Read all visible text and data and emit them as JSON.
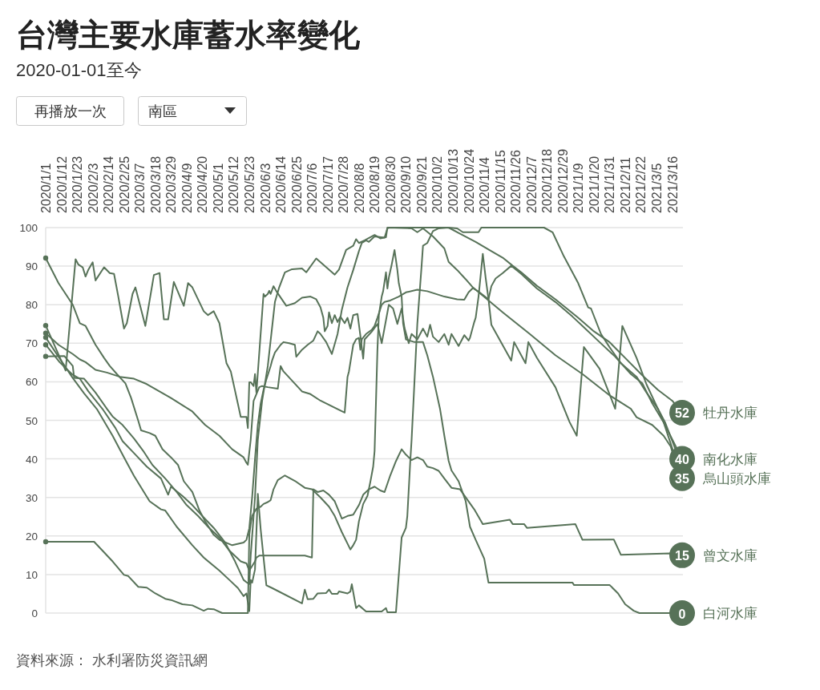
{
  "chart_data": {
    "type": "line",
    "title": "台灣主要水庫蓄水率變化",
    "subtitle": "2020-01-01至今",
    "annotations": [
      "再播放一次",
      "南區",
      "資料來源： 水利署防災資訊網"
    ],
    "xlim": [
      "2020-01-01",
      "2021-03-23"
    ],
    "xticks": [
      {
        "value": "2020-01-01",
        "label": "2020/1/1"
      },
      {
        "value": "2020-01-12",
        "label": "2020/1/12"
      },
      {
        "value": "2020-01-23",
        "label": "2020/1/23"
      },
      {
        "value": "2020-02-03",
        "label": "2020/2/3"
      },
      {
        "value": "2020-02-14",
        "label": "2020/2/14"
      },
      {
        "value": "2020-02-25",
        "label": "2020/2/25"
      },
      {
        "value": "2020-03-07",
        "label": "2020/3/7"
      },
      {
        "value": "2020-03-18",
        "label": "2020/3/18"
      },
      {
        "value": "2020-03-29",
        "label": "2020/3/29"
      },
      {
        "value": "2020-04-09",
        "label": "2020/4/9"
      },
      {
        "value": "2020-04-20",
        "label": "2020/4/20"
      },
      {
        "value": "2020-05-01",
        "label": "2020/5/1"
      },
      {
        "value": "2020-05-12",
        "label": "2020/5/12"
      },
      {
        "value": "2020-05-23",
        "label": "2020/5/23"
      },
      {
        "value": "2020-06-03",
        "label": "2020/6/3"
      },
      {
        "value": "2020-06-14",
        "label": "2020/6/14"
      },
      {
        "value": "2020-06-25",
        "label": "2020/6/25"
      },
      {
        "value": "2020-07-06",
        "label": "2020/7/6"
      },
      {
        "value": "2020-07-17",
        "label": "2020/7/17"
      },
      {
        "value": "2020-07-28",
        "label": "2020/7/28"
      },
      {
        "value": "2020-08-08",
        "label": "2020/8/8"
      },
      {
        "value": "2020-08-19",
        "label": "2020/8/19"
      },
      {
        "value": "2020-08-30",
        "label": "2020/8/30"
      },
      {
        "value": "2020-09-10",
        "label": "2020/9/10"
      },
      {
        "value": "2020-09-21",
        "label": "2020/9/21"
      },
      {
        "value": "2020-10-02",
        "label": "2020/10/2"
      },
      {
        "value": "2020-10-13",
        "label": "2020/10/13"
      },
      {
        "value": "2020-10-24",
        "label": "2020/10/24"
      },
      {
        "value": "2020-11-04",
        "label": "2020/11/4"
      },
      {
        "value": "2020-11-15",
        "label": "2020/11/15"
      },
      {
        "value": "2020-11-26",
        "label": "2020/11/26"
      },
      {
        "value": "2020-12-07",
        "label": "2020/12/7"
      },
      {
        "value": "2020-12-18",
        "label": "2020/12/18"
      },
      {
        "value": "2020-12-29",
        "label": "2020/12/29"
      },
      {
        "value": "2021-01-09",
        "label": "2021/1/9"
      },
      {
        "value": "2021-01-20",
        "label": "2021/1/20"
      },
      {
        "value": "2021-01-31",
        "label": "2021/1/31"
      },
      {
        "value": "2021-02-11",
        "label": "2021/2/11"
      },
      {
        "value": "2021-02-22",
        "label": "2021/2/22"
      },
      {
        "value": "2021-03-05",
        "label": "2021/3/5"
      },
      {
        "value": "2021-03-16",
        "label": "2021/3/16"
      }
    ],
    "ylim": [
      0,
      100
    ],
    "yticks": [
      0,
      10,
      20,
      30,
      40,
      50,
      60,
      70,
      80,
      90,
      100
    ],
    "grid": "y",
    "series": [
      {
        "name": "牡丹水庫",
        "color": "#577258",
        "x": [
          "2020-01-01",
          "2020-01-10",
          "2020-01-20",
          "2020-01-25",
          "2020-01-29",
          "2020-02-05",
          "2020-02-11",
          "2020-02-15",
          "2020-02-20",
          "2020-02-26",
          "2020-03-01",
          "2020-03-06",
          "2020-03-08",
          "2020-03-14",
          "2020-03-18",
          "2020-03-23",
          "2020-03-29",
          "2020-04-03",
          "2020-04-07",
          "2020-04-13",
          "2020-04-18",
          "2020-04-22",
          "2020-04-28",
          "2020-05-02",
          "2020-05-11",
          "2020-05-19",
          "2020-05-21",
          "2020-05-23",
          "2020-05-25",
          "2020-05-27",
          "2020-05-29",
          "2020-05-31",
          "2020-06-02",
          "2020-06-04",
          "2020-06-07",
          "2020-06-08",
          "2020-06-10",
          "2020-06-14",
          "2020-06-16",
          "2020-06-20",
          "2020-06-24",
          "2020-06-25",
          "2020-06-29",
          "2020-07-03",
          "2020-07-07",
          "2020-07-10",
          "2020-07-12",
          "2020-07-16",
          "2020-07-20",
          "2020-07-24",
          "2020-07-27",
          "2020-07-31",
          "2020-08-04",
          "2020-08-08",
          "2020-08-10",
          "2020-08-13",
          "2020-08-15",
          "2020-08-19",
          "2020-08-26",
          "2020-08-28",
          "2020-08-29",
          "2020-10-10",
          "2020-10-18",
          "2020-10-29",
          "2020-11-09",
          "2020-11-17",
          "2020-11-24",
          "2020-11-30",
          "2020-12-11",
          "2020-12-24",
          "2021-01-01",
          "2021-01-09",
          "2021-01-20",
          "2021-01-31",
          "2021-02-11",
          "2021-02-23",
          "2021-03-06",
          "2021-03-16",
          "2021-03-23"
        ],
        "values": [
          92.1,
          85.6,
          80,
          75.2,
          74.5,
          69.6,
          66.2,
          64.1,
          62,
          59.6,
          55.8,
          49.9,
          47.4,
          46.7,
          46,
          42.5,
          40.4,
          38.4,
          34.2,
          31.4,
          26.6,
          23.8,
          20.3,
          19,
          17.6,
          18.3,
          19,
          22,
          30,
          40,
          48.9,
          54.4,
          57.9,
          60.6,
          64.1,
          65.5,
          67.6,
          69.6,
          70.3,
          70,
          69.6,
          66.5,
          68.3,
          69.6,
          70.7,
          73.1,
          72.4,
          70.3,
          67.2,
          72.4,
          78.7,
          84.5,
          89,
          93.9,
          96,
          96.7,
          96.3,
          97.7,
          97.4,
          99.8,
          100,
          100,
          98.4,
          96.3,
          93.9,
          92.2,
          90.1,
          88.4,
          84.9,
          81.4,
          79,
          76.6,
          73.1,
          70.3,
          66.2,
          61.7,
          57.9,
          55.1,
          52
        ],
        "value_labels": [
          null,
          null,
          null,
          null,
          null,
          null,
          null,
          null,
          null,
          null,
          null,
          null,
          null,
          null,
          null,
          null,
          null,
          null,
          null,
          null,
          null,
          null,
          null,
          null,
          null,
          null,
          null,
          null,
          null,
          null,
          null,
          null,
          null,
          null,
          null,
          null,
          null,
          null,
          null,
          null,
          null,
          null,
          null,
          null,
          null,
          null,
          null,
          null,
          null,
          null,
          null,
          null,
          null,
          null,
          null,
          null,
          null,
          null,
          null,
          null,
          null,
          null,
          null,
          null,
          null,
          null,
          null,
          null,
          null,
          null,
          null,
          null,
          null,
          null,
          null,
          null,
          null,
          null,
          "52"
        ]
      },
      {
        "name": "南化水庫",
        "color": "#577258",
        "x": [
          "2020-01-01",
          "2020-01-10",
          "2020-01-20",
          "2020-01-25",
          "2020-01-29",
          "2020-02-05",
          "2020-02-13",
          "2020-02-22",
          "2020-03-03",
          "2020-03-12",
          "2020-03-29",
          "2020-04-13",
          "2020-04-22",
          "2020-05-02",
          "2020-05-11",
          "2020-05-19",
          "2020-05-21",
          "2020-05-22",
          "2020-05-24",
          "2020-05-26",
          "2020-05-30",
          "2020-06-01",
          "2020-06-05",
          "2020-06-12",
          "2020-06-14",
          "2020-06-16",
          "2020-06-29",
          "2020-07-05",
          "2020-07-12",
          "2020-07-29",
          "2020-07-31",
          "2020-08-01",
          "2020-08-04",
          "2020-08-06",
          "2020-08-08",
          "2020-08-09",
          "2020-08-10",
          "2020-08-13",
          "2020-08-17",
          "2020-08-19",
          "2020-08-21",
          "2020-08-24",
          "2020-08-26",
          "2020-08-30",
          "2020-09-05",
          "2020-09-10",
          "2020-09-18",
          "2020-09-25",
          "2020-10-07",
          "2020-10-16",
          "2020-10-21",
          "2020-10-24",
          "2020-10-27",
          "2020-10-31",
          "2020-11-07",
          "2020-11-09",
          "2020-11-12",
          "2020-11-17",
          "2020-11-23",
          "2020-11-30",
          "2020-12-11",
          "2020-12-24",
          "2021-01-05",
          "2021-01-12",
          "2021-01-24",
          "2021-02-04",
          "2021-02-15",
          "2021-02-23",
          "2021-03-02",
          "2021-03-10",
          "2021-03-23"
        ],
        "values": [
          72.6,
          69.6,
          67.2,
          65.8,
          65.1,
          63.1,
          62.4,
          61.3,
          60.8,
          59.4,
          55.8,
          52.3,
          48.8,
          46,
          42.5,
          40.4,
          39,
          38.5,
          45,
          55,
          58.6,
          58.9,
          58.6,
          58.2,
          64.1,
          62.7,
          57.5,
          56.8,
          55.1,
          52,
          61.3,
          62.7,
          69.6,
          71,
          71.4,
          68.3,
          71,
          72.4,
          73.5,
          74.5,
          76.6,
          80,
          80.7,
          81.1,
          82.1,
          83.2,
          83.9,
          83.5,
          82.1,
          81.4,
          81.3,
          83.2,
          84.3,
          83.4,
          81.4,
          84.8,
          86.8,
          88.2,
          90.1,
          88,
          84.2,
          80.7,
          76.9,
          74.5,
          70.3,
          66.5,
          62,
          59.6,
          54.4,
          49.5,
          40
        ],
        "value_labels": [
          null,
          null,
          null,
          null,
          null,
          null,
          null,
          null,
          null,
          null,
          null,
          null,
          null,
          null,
          null,
          null,
          null,
          null,
          null,
          null,
          null,
          null,
          null,
          null,
          null,
          null,
          null,
          null,
          null,
          null,
          null,
          null,
          null,
          null,
          null,
          null,
          null,
          null,
          null,
          null,
          null,
          null,
          null,
          null,
          null,
          null,
          null,
          null,
          null,
          null,
          null,
          null,
          null,
          null,
          null,
          null,
          null,
          null,
          null,
          null,
          null,
          null,
          null,
          null,
          null,
          null,
          null,
          null,
          null,
          null,
          "40"
        ]
      },
      {
        "color": "#577258",
        "x": [
          "2020-01-01",
          "2020-01-10",
          "2020-01-20",
          "2020-01-28",
          "2020-02-06",
          "2020-02-17",
          "2020-02-26",
          "2020-03-03",
          "2020-03-10",
          "2020-03-14",
          "2020-03-22",
          "2020-03-25",
          "2020-04-02",
          "2020-04-13",
          "2020-04-21",
          "2020-05-02",
          "2020-05-09",
          "2020-05-15",
          "2020-05-19",
          "2020-05-21",
          "2020-05-23",
          "2020-05-24",
          "2020-05-25",
          "2020-05-27",
          "2020-05-29",
          "2020-05-31",
          "2020-06-04",
          "2020-06-08",
          "2020-06-29",
          "2020-07-01",
          "2020-07-03",
          "2020-07-07",
          "2020-07-10",
          "2020-07-16",
          "2020-07-18",
          "2020-07-20",
          "2020-07-24",
          "2020-07-25",
          "2020-07-31",
          "2020-08-02",
          "2020-08-03",
          "2020-08-06",
          "2020-08-08",
          "2020-08-13",
          "2020-08-24",
          "2020-08-27",
          "2020-08-28",
          "2020-09-03",
          "2020-09-07",
          "2020-09-10",
          "2020-09-11",
          "2020-09-13",
          "2020-09-14",
          "2020-09-16",
          "2020-09-18",
          "2020-09-21",
          "2020-09-22",
          "2020-09-25",
          "2020-09-29",
          "2020-10-03",
          "2020-10-10",
          "2020-10-16",
          "2020-10-20",
          "2020-10-26",
          "2020-10-31",
          "2020-11-02",
          "2020-12-16",
          "2020-12-22",
          "2020-12-30",
          "2021-01-09",
          "2021-01-16",
          "2021-01-18",
          "2021-01-25",
          "2021-01-31",
          "2021-02-08",
          "2021-02-19",
          "2021-02-26",
          "2021-03-06",
          "2021-03-11",
          "2021-03-23"
        ],
        "values": [
          71.5,
          66.5,
          61,
          57,
          52.9,
          46,
          39.7,
          35.6,
          31.4,
          29,
          26.9,
          26.6,
          22.4,
          17.6,
          14.4,
          11,
          8.6,
          6.5,
          4.4,
          5.1,
          0.5,
          8.6,
          7.9,
          11.3,
          30.9,
          21.7,
          7.2,
          6.5,
          2.5,
          6.1,
          3.6,
          3.7,
          5.1,
          5.2,
          6.1,
          5,
          5,
          5.6,
          5.1,
          5.6,
          7.5,
          1.3,
          2,
          0.4,
          0.4,
          1.3,
          0.2,
          0.2,
          19.6,
          22.1,
          25.2,
          39,
          45,
          60,
          75,
          90,
          95.3,
          96,
          99.1,
          99.8,
          100,
          99.8,
          98.8,
          98.8,
          98.8,
          100,
          100,
          98.8,
          92.5,
          85.6,
          79.3,
          79,
          72.4,
          69,
          64.8,
          61.3,
          57.2,
          53,
          49.5,
          38
        ]
      },
      {
        "name": "烏山頭水庫",
        "color": "#577258",
        "x": [
          "2020-01-01",
          "2020-01-15",
          "2020-01-22",
          "2020-01-24",
          "2020-01-27",
          "2020-01-29",
          "2020-01-31",
          "2020-02-03",
          "2020-02-05",
          "2020-02-11",
          "2020-02-15",
          "2020-02-18",
          "2020-02-21",
          "2020-02-25",
          "2020-02-27",
          "2020-03-02",
          "2020-03-04",
          "2020-03-11",
          "2020-03-17",
          "2020-03-21",
          "2020-03-24",
          "2020-03-27",
          "2020-03-31",
          "2020-04-07",
          "2020-04-10",
          "2020-04-13",
          "2020-04-21",
          "2020-04-24",
          "2020-04-28",
          "2020-05-02",
          "2020-05-07",
          "2020-05-10",
          "2020-05-17",
          "2020-05-21",
          "2020-05-22",
          "2020-05-23",
          "2020-05-24",
          "2020-05-26",
          "2020-05-27",
          "2020-05-28",
          "2020-06-02",
          "2020-06-03",
          "2020-06-05",
          "2020-06-06",
          "2020-06-07",
          "2020-06-09",
          "2020-06-11",
          "2020-06-18",
          "2020-06-24",
          "2020-06-29",
          "2020-07-05",
          "2020-07-09",
          "2020-07-12",
          "2020-07-14",
          "2020-07-15",
          "2020-07-17",
          "2020-07-18",
          "2020-07-20",
          "2020-07-22",
          "2020-07-24",
          "2020-07-26",
          "2020-07-29",
          "2020-07-31",
          "2020-08-02",
          "2020-08-04",
          "2020-08-07",
          "2020-08-09",
          "2020-08-11",
          "2020-08-12",
          "2020-08-17",
          "2020-08-21",
          "2020-08-24",
          "2020-08-26",
          "2020-08-29",
          "2020-09-01",
          "2020-09-04",
          "2020-09-07",
          "2020-09-09",
          "2020-09-12",
          "2020-09-14",
          "2020-09-18",
          "2020-09-22",
          "2020-09-25",
          "2020-09-27",
          "2020-09-29",
          "2020-10-03",
          "2020-10-07",
          "2020-10-10",
          "2020-10-12",
          "2020-10-17",
          "2020-10-21",
          "2020-10-24",
          "2020-10-25",
          "2020-10-28",
          "2020-10-29",
          "2020-10-31",
          "2020-11-03",
          "2020-11-05",
          "2020-11-07",
          "2020-11-09",
          "2020-11-23",
          "2020-11-25",
          "2020-12-03",
          "2020-12-05",
          "2020-12-11",
          "2020-12-24",
          "2021-01-03",
          "2021-01-08",
          "2021-01-13",
          "2021-01-24",
          "2021-02-04",
          "2021-02-09",
          "2021-02-19",
          "2021-02-26",
          "2021-03-06",
          "2021-03-10",
          "2021-03-23"
        ],
        "values": [
          74.6,
          62.9,
          91.8,
          90.4,
          89.7,
          87.3,
          89.1,
          91,
          86.3,
          89.7,
          88.2,
          88,
          82.1,
          73.8,
          75.2,
          82.8,
          84.5,
          74.5,
          87.7,
          88.2,
          76.2,
          76.2,
          85.9,
          79.7,
          85.6,
          84.5,
          78.3,
          77.3,
          78.3,
          75.2,
          64.8,
          62.7,
          50.9,
          50.9,
          48,
          59.9,
          59.9,
          58.9,
          62,
          57.2,
          82.8,
          82.1,
          82.8,
          83.6,
          82.8,
          84.8,
          83.5,
          79.7,
          80.4,
          81.8,
          82.1,
          81.4,
          79.3,
          76.6,
          73.1,
          74.5,
          78,
          75.2,
          77.3,
          75.5,
          76.9,
          75.2,
          76.6,
          73.8,
          77.3,
          77.6,
          72,
          66,
          71,
          73,
          75,
          70,
          74,
          80,
          79,
          75,
          79,
          74,
          70,
          72.4,
          71,
          73.8,
          71.7,
          74.8,
          71.7,
          70.3,
          72.4,
          69.6,
          72.4,
          69.3,
          72.1,
          70.7,
          71.4,
          75.5,
          76.6,
          82.1,
          93.2,
          87,
          81.4,
          74.8,
          65.5,
          70.3,
          64.8,
          70.3,
          66.2,
          58.6,
          49.5,
          46,
          69,
          63.4,
          53,
          74.5,
          66.2,
          59.3,
          53,
          49.5,
          35
        ],
        "value_labels": [
          null,
          null,
          null,
          null,
          null,
          null,
          null,
          null,
          null,
          null,
          null,
          null,
          null,
          null,
          null,
          null,
          null,
          null,
          null,
          null,
          null,
          null,
          null,
          null,
          null,
          null,
          null,
          null,
          null,
          null,
          null,
          null,
          null,
          null,
          null,
          null,
          null,
          null,
          null,
          null,
          null,
          null,
          null,
          null,
          null,
          null,
          null,
          null,
          null,
          null,
          null,
          null,
          null,
          null,
          null,
          null,
          null,
          null,
          null,
          null,
          null,
          null,
          null,
          null,
          null,
          null,
          null,
          null,
          null,
          null,
          null,
          null,
          null,
          null,
          null,
          null,
          null,
          null,
          null,
          null,
          null,
          null,
          null,
          null,
          null,
          null,
          null,
          null,
          null,
          null,
          null,
          null,
          null,
          null,
          null,
          null,
          null,
          null,
          null,
          null,
          null,
          null,
          null,
          null,
          null,
          null,
          null,
          null,
          null,
          null,
          null,
          null,
          null,
          null,
          null,
          null,
          "35"
        ]
      },
      {
        "color": "#577258",
        "x": [
          "2020-01-01",
          "2020-01-11",
          "2020-01-20",
          "2020-01-25",
          "2020-01-31",
          "2020-02-10",
          "2020-02-19",
          "2020-02-24",
          "2020-03-03",
          "2020-03-12",
          "2020-03-22",
          "2020-03-27",
          "2020-03-29",
          "2020-04-06",
          "2020-04-13",
          "2020-04-21",
          "2020-04-28",
          "2020-05-06",
          "2020-05-13",
          "2020-05-19",
          "2020-05-21",
          "2020-05-23",
          "2020-05-24",
          "2020-05-27",
          "2020-05-29",
          "2020-06-01",
          "2020-06-05",
          "2020-06-10",
          "2020-06-13",
          "2020-06-17",
          "2020-06-22",
          "2020-06-29",
          "2020-07-02",
          "2020-07-09",
          "2020-07-18",
          "2020-07-22",
          "2020-07-25",
          "2020-07-30",
          "2020-08-04",
          "2020-08-06",
          "2020-08-08",
          "2020-08-12",
          "2020-08-19",
          "2020-08-23",
          "2020-08-27",
          "2020-08-28",
          "2020-09-14",
          "2020-09-18",
          "2020-09-22",
          "2020-09-29",
          "2020-10-07",
          "2020-10-10",
          "2020-10-16",
          "2020-10-22",
          "2020-10-27",
          "2020-11-17",
          "2020-12-06",
          "2020-12-24",
          "2021-01-12",
          "2021-01-31",
          "2021-02-15",
          "2021-02-19",
          "2021-03-02",
          "2021-03-10",
          "2021-03-15",
          "2021-03-23"
        ],
        "values": [
          69.6,
          65,
          61.8,
          60.8,
          57.5,
          52.9,
          48,
          44.6,
          41.5,
          38,
          34.9,
          30.7,
          32.8,
          30.4,
          28,
          24.8,
          22.1,
          18.3,
          13.4,
          8.6,
          8,
          7.5,
          15,
          30,
          45,
          55,
          64.1,
          80.7,
          84.5,
          88.4,
          89.2,
          89.4,
          88.4,
          92,
          89.1,
          87.8,
          89.1,
          94.2,
          95.3,
          97,
          96,
          96.7,
          98.1,
          97.2,
          97.5,
          100,
          99.8,
          98.8,
          99.8,
          97.7,
          94.6,
          91.1,
          89,
          86.6,
          84.5,
          78,
          72.4,
          66.9,
          62,
          56.5,
          53,
          50.8,
          48.8,
          46,
          43.2,
          33
        ]
      },
      {
        "name": "曾文水庫",
        "color": "#577258",
        "x": [
          "2020-01-01",
          "2020-01-14",
          "2020-01-20",
          "2020-01-21",
          "2020-01-28",
          "2020-01-30",
          "2020-02-05",
          "2020-02-13",
          "2020-02-17",
          "2020-02-24",
          "2020-03-03",
          "2020-03-10",
          "2020-03-16",
          "2020-03-25",
          "2020-04-02",
          "2020-04-09",
          "2020-04-17",
          "2020-04-24",
          "2020-05-02",
          "2020-05-09",
          "2020-05-17",
          "2020-05-21",
          "2020-05-23",
          "2020-05-27",
          "2020-05-28",
          "2020-05-30",
          "2020-07-01",
          "2020-07-06",
          "2020-07-07",
          "2020-07-10",
          "2020-07-14",
          "2020-07-18",
          "2020-07-22",
          "2020-07-27",
          "2020-07-31",
          "2020-08-04",
          "2020-08-08",
          "2020-08-11",
          "2020-08-15",
          "2020-08-19",
          "2020-08-23",
          "2020-08-26",
          "2020-08-30",
          "2020-09-03",
          "2020-09-07",
          "2020-09-10",
          "2020-09-14",
          "2020-09-18",
          "2020-09-22",
          "2020-09-25",
          "2020-09-29",
          "2020-10-03",
          "2020-10-07",
          "2020-10-12",
          "2020-10-18",
          "2020-10-28",
          "2020-11-03",
          "2020-11-22",
          "2020-11-24",
          "2020-12-02",
          "2020-12-04",
          "2021-01-07",
          "2021-01-12",
          "2021-02-03",
          "2021-02-08",
          "2021-03-15",
          "2021-03-23"
        ],
        "values": [
          66.6,
          66.7,
          64.1,
          61,
          60.8,
          59.9,
          57.2,
          53,
          51,
          48.8,
          45.3,
          41.8,
          38.4,
          34.9,
          31.4,
          28,
          25.2,
          22.4,
          19.6,
          16.2,
          13.4,
          12.9,
          11,
          13.4,
          14.4,
          14.9,
          14.9,
          14.4,
          32.1,
          31.4,
          31.8,
          30.7,
          29,
          24.5,
          25.2,
          25.5,
          28,
          30.7,
          32.1,
          32.8,
          31.8,
          31.4,
          35.7,
          39.4,
          42.5,
          41.1,
          39.7,
          40.4,
          39.7,
          38,
          37.6,
          36.9,
          34.9,
          32.5,
          32.1,
          26.9,
          23.1,
          24.2,
          23.1,
          23.1,
          22.1,
          23.1,
          19,
          19.1,
          15.1,
          15.5,
          15
        ],
        "value_labels": [
          null,
          null,
          null,
          null,
          null,
          null,
          null,
          null,
          null,
          null,
          null,
          null,
          null,
          null,
          null,
          null,
          null,
          null,
          null,
          null,
          null,
          null,
          null,
          null,
          null,
          null,
          null,
          null,
          null,
          null,
          null,
          null,
          null,
          null,
          null,
          null,
          null,
          null,
          null,
          null,
          null,
          null,
          null,
          null,
          null,
          null,
          null,
          null,
          null,
          null,
          null,
          null,
          null,
          null,
          null,
          null,
          null,
          null,
          null,
          null,
          null,
          null,
          null,
          null,
          null,
          null,
          "15"
        ]
      },
      {
        "name": "白河水庫",
        "color": "#577258",
        "x": [
          "2020-01-01",
          "2020-02-04",
          "2020-02-17",
          "2020-02-25",
          "2020-02-28",
          "2020-03-06",
          "2020-03-12",
          "2020-03-18",
          "2020-03-25",
          "2020-03-29",
          "2020-04-06",
          "2020-04-13",
          "2020-04-21",
          "2020-04-24",
          "2020-04-28",
          "2020-05-04",
          "2020-05-22",
          "2020-05-23",
          "2020-05-24",
          "2020-05-25",
          "2020-05-28",
          "2020-05-31",
          "2020-06-02",
          "2020-06-05",
          "2020-06-07",
          "2020-06-09",
          "2020-06-12",
          "2020-06-17",
          "2020-06-24",
          "2020-07-01",
          "2020-07-06",
          "2020-07-12",
          "2020-07-18",
          "2020-07-22",
          "2020-07-27",
          "2020-08-02",
          "2020-08-04",
          "2020-08-06",
          "2020-08-08",
          "2020-08-11",
          "2020-08-14",
          "2020-08-16",
          "2020-08-18",
          "2020-08-19",
          "2020-08-21",
          "2020-08-22",
          "2020-08-24",
          "2020-08-25",
          "2020-08-27",
          "2020-08-28",
          "2020-08-29",
          "2020-08-31",
          "2020-09-02",
          "2020-09-04",
          "2020-09-05",
          "2020-09-07",
          "2020-09-08",
          "2020-09-10",
          "2020-09-16",
          "2020-09-22",
          "2020-09-25",
          "2020-09-29",
          "2020-10-04",
          "2020-10-07",
          "2020-10-10",
          "2020-10-12",
          "2020-10-17",
          "2020-10-22",
          "2020-10-25",
          "2020-10-29",
          "2020-11-04",
          "2020-11-07",
          "2020-12-06",
          "2021-01-05",
          "2021-01-06",
          "2021-01-31",
          "2021-02-06",
          "2021-02-11",
          "2021-02-17",
          "2021-02-21",
          "2021-03-23"
        ],
        "values": [
          18.5,
          18.5,
          13.4,
          9.9,
          9.6,
          6.8,
          6.6,
          5.1,
          3.7,
          3.4,
          2.3,
          2,
          0.6,
          1.1,
          1,
          0,
          0,
          20.3,
          23.1,
          25.2,
          27.1,
          27.6,
          28.3,
          28.8,
          29.3,
          32.1,
          34.5,
          35.7,
          34.3,
          32.5,
          32.1,
          30,
          27.6,
          25.2,
          21,
          16.5,
          17.6,
          19,
          23.8,
          28.3,
          30.4,
          34,
          38,
          42,
          68.3,
          77.3,
          82.1,
          83.5,
          88.4,
          84.2,
          87,
          90.4,
          94.2,
          89,
          85.6,
          82.1,
          75.2,
          71,
          70.3,
          70.3,
          66.9,
          61.3,
          52.9,
          46,
          39.5,
          37,
          34.2,
          29,
          22.4,
          19,
          14.1,
          7.9,
          7.9,
          7.9,
          7.3,
          7.3,
          5.1,
          2.3,
          0.6,
          0,
          0
        ],
        "value_labels": [
          null,
          null,
          null,
          null,
          null,
          null,
          null,
          null,
          null,
          null,
          null,
          null,
          null,
          null,
          null,
          null,
          null,
          null,
          null,
          null,
          null,
          null,
          null,
          null,
          null,
          null,
          null,
          null,
          null,
          null,
          null,
          null,
          null,
          null,
          null,
          null,
          null,
          null,
          null,
          null,
          null,
          null,
          null,
          null,
          null,
          null,
          null,
          null,
          null,
          null,
          null,
          null,
          null,
          null,
          null,
          null,
          null,
          null,
          null,
          null,
          null,
          null,
          null,
          null,
          null,
          null,
          null,
          null,
          null,
          null,
          null,
          null,
          null,
          null,
          null,
          null,
          null,
          null,
          null,
          null,
          "0"
        ]
      },
      {
        "type": "scatter",
        "marker": "circle",
        "color": "#577258",
        "x": [
          "2020-01-01",
          "2020-01-01",
          "2020-01-01",
          "2020-01-01",
          "2020-01-01",
          "2020-01-01",
          "2020-01-01"
        ],
        "values": [
          92.1,
          74.6,
          72.6,
          71.5,
          69.6,
          66.6,
          18.5
        ]
      }
    ]
  }
}
